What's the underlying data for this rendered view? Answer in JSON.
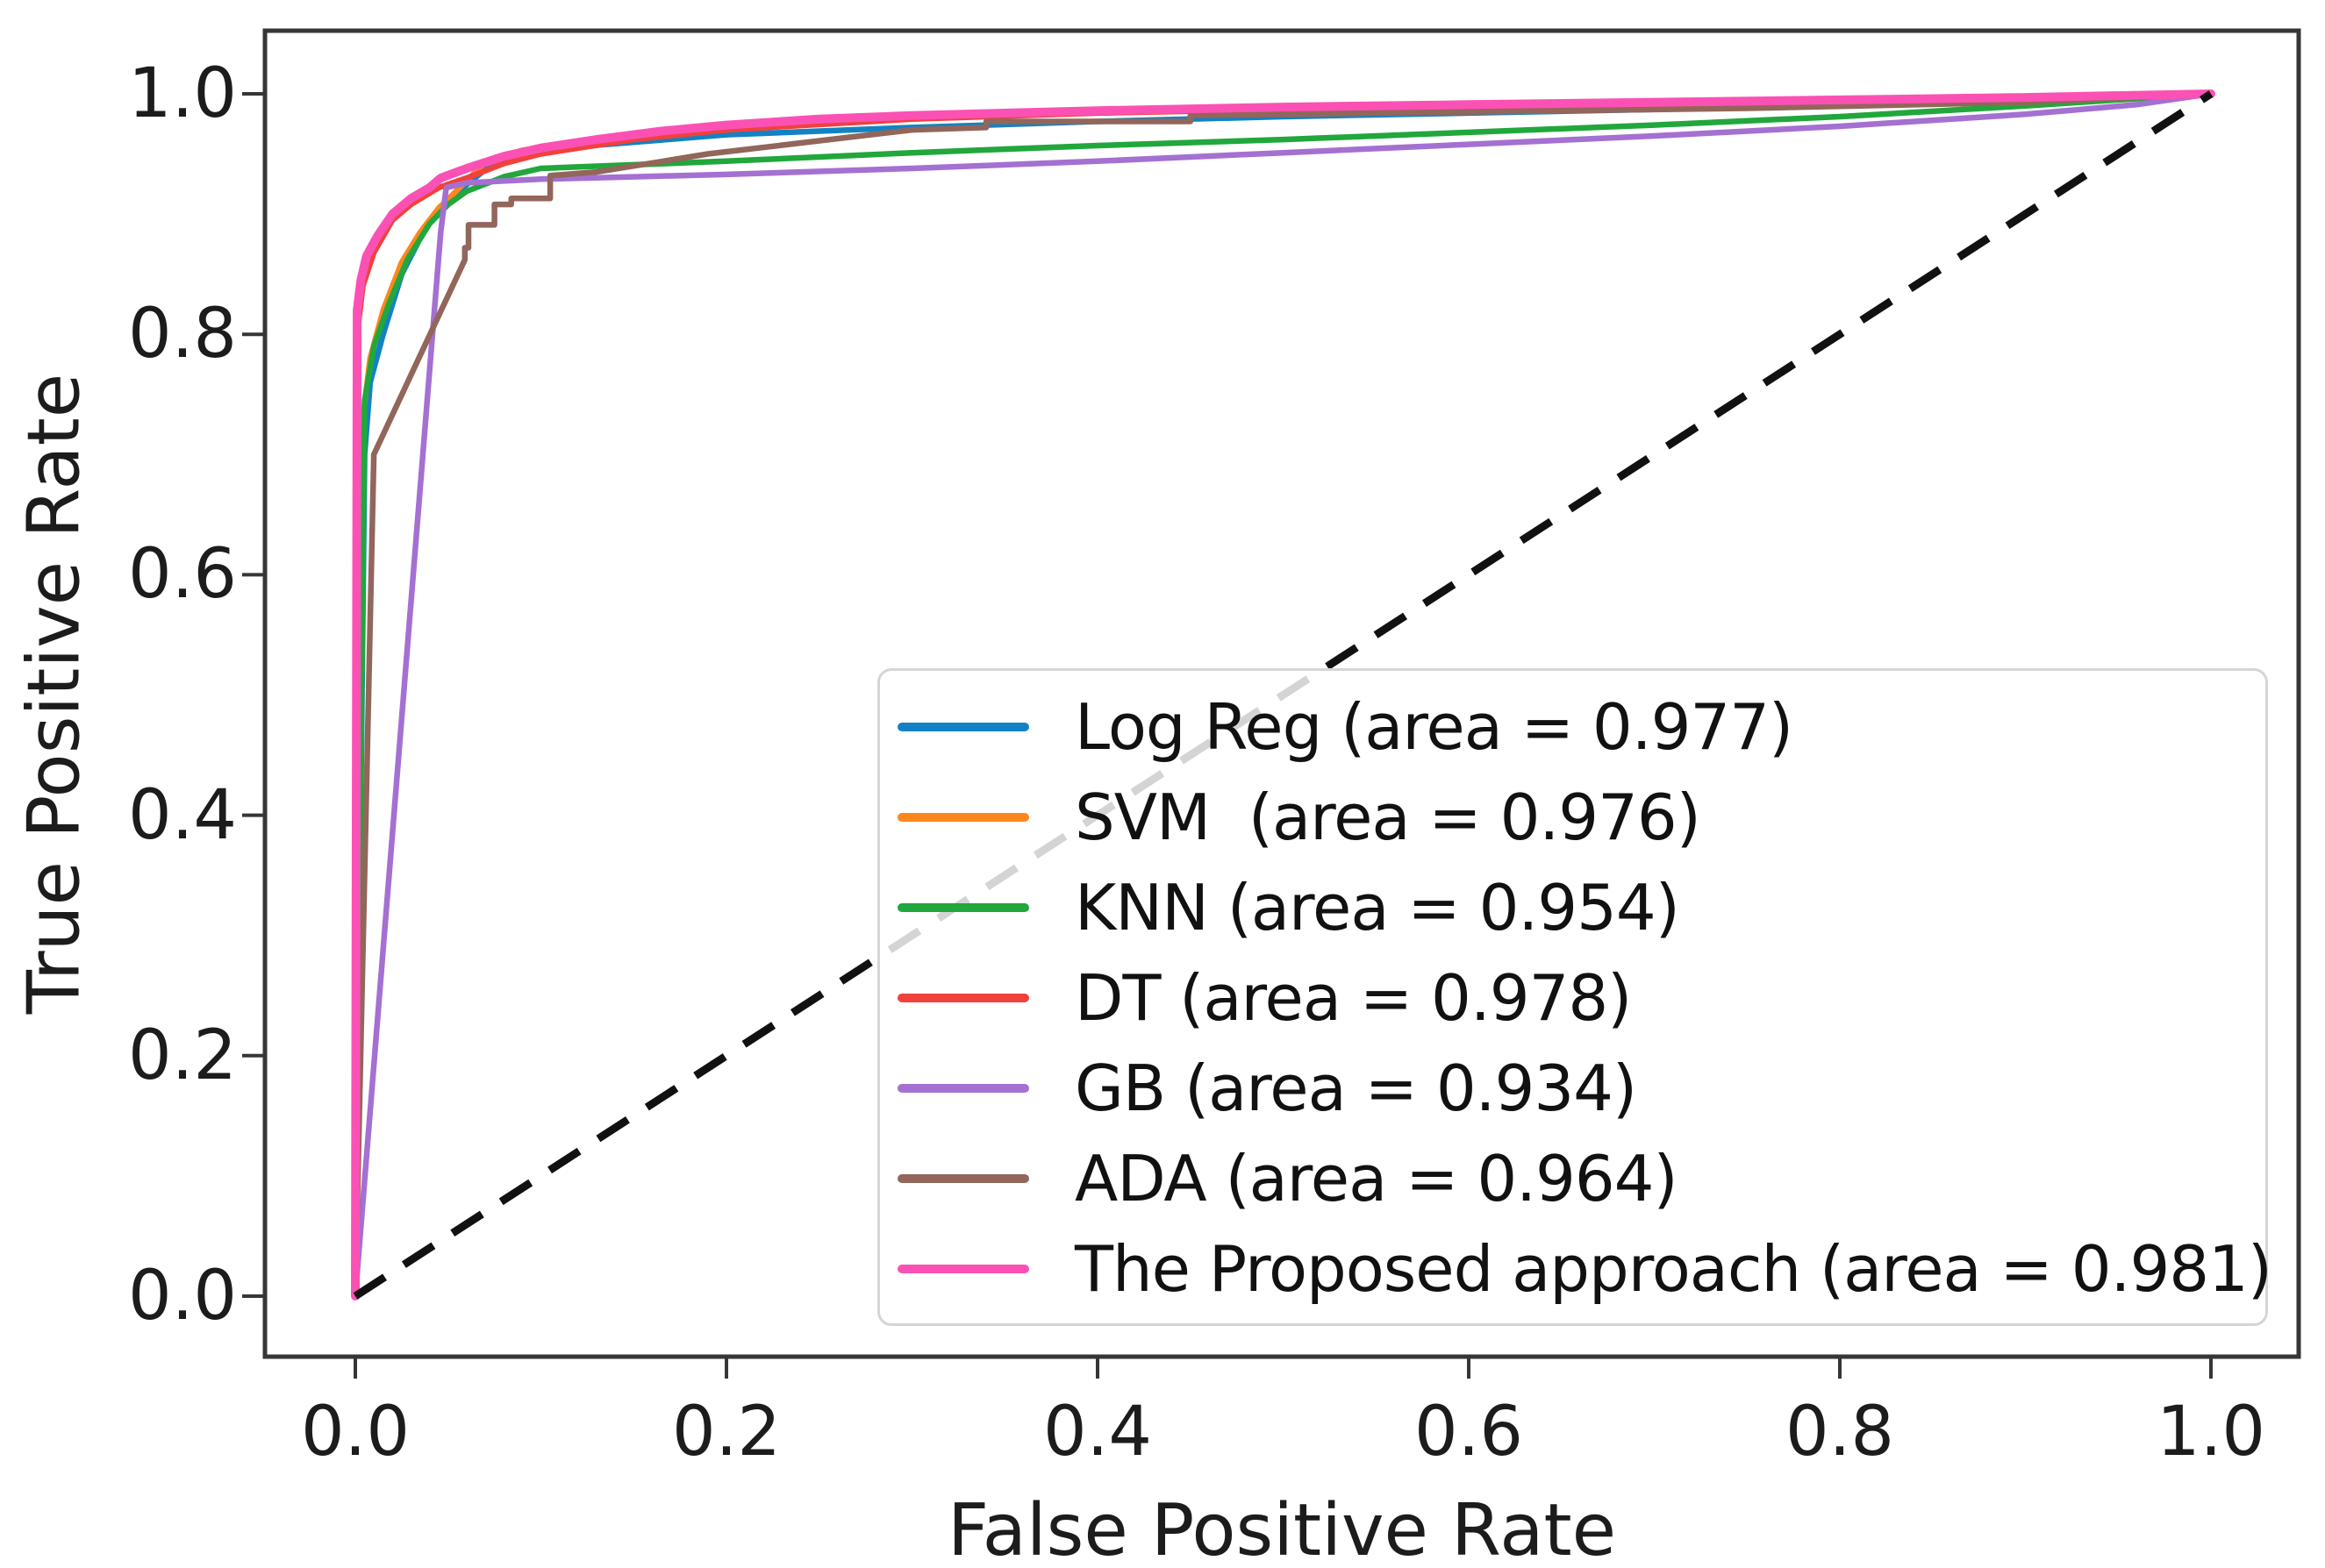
{
  "chart_data": {
    "type": "line",
    "title": "",
    "xlabel": "False Positive Rate",
    "ylabel": "True Positive Rate",
    "xlim": [
      -0.05,
      1.05
    ],
    "ylim": [
      -0.05,
      1.05
    ],
    "grid": false,
    "legend_position": "lower right",
    "x_tick_values": [
      0.0,
      0.2,
      0.4,
      0.6,
      0.8,
      1.0
    ],
    "y_tick_values": [
      0.0,
      0.2,
      0.4,
      0.6,
      0.8,
      1.0
    ],
    "x_tick_labels": [
      "0.0",
      "0.2",
      "0.4",
      "0.6",
      "0.8",
      "1.0"
    ],
    "y_tick_labels": [
      "0.0",
      "0.2",
      "0.4",
      "0.6",
      "0.8",
      "1.0"
    ],
    "diagonal_reference": {
      "style": "dashed",
      "color": "#111111",
      "points": [
        [
          0,
          0
        ],
        [
          1,
          1
        ]
      ]
    },
    "series": [
      {
        "key": "log-reg",
        "name": "Log Reg",
        "auc": 0.977,
        "label": "Log Reg (area = 0.977)",
        "color": "#1382c4",
        "points": [
          [
            0,
            0
          ],
          [
            0.005,
            0.7
          ],
          [
            0.008,
            0.76
          ],
          [
            0.015,
            0.8
          ],
          [
            0.025,
            0.85
          ],
          [
            0.035,
            0.88
          ],
          [
            0.045,
            0.905
          ],
          [
            0.055,
            0.918
          ],
          [
            0.07,
            0.937
          ],
          [
            0.09,
            0.95
          ],
          [
            0.12,
            0.956
          ],
          [
            0.16,
            0.961
          ],
          [
            0.2,
            0.966
          ],
          [
            0.3,
            0.972
          ],
          [
            0.4,
            0.977
          ],
          [
            0.5,
            0.981
          ],
          [
            0.6,
            0.984
          ],
          [
            0.7,
            0.987
          ],
          [
            0.8,
            0.991
          ],
          [
            0.9,
            0.995
          ],
          [
            1,
            1
          ]
        ]
      },
      {
        "key": "svm",
        "name": "SVM",
        "auc": 0.976,
        "label": "SVM  (area = 0.976)",
        "color": "#ff861c",
        "points": [
          [
            0,
            0
          ],
          [
            0.004,
            0.73
          ],
          [
            0.008,
            0.78
          ],
          [
            0.015,
            0.82
          ],
          [
            0.025,
            0.86
          ],
          [
            0.035,
            0.885
          ],
          [
            0.045,
            0.905
          ],
          [
            0.055,
            0.92
          ],
          [
            0.07,
            0.943
          ],
          [
            0.09,
            0.953
          ],
          [
            0.12,
            0.958
          ],
          [
            0.15,
            0.963
          ],
          [
            0.18,
            0.968
          ],
          [
            0.22,
            0.973
          ],
          [
            0.27,
            0.978
          ],
          [
            0.35,
            0.983
          ],
          [
            0.45,
            0.986
          ],
          [
            0.6,
            0.989
          ],
          [
            0.75,
            0.992
          ],
          [
            0.9,
            0.996
          ],
          [
            1,
            1
          ]
        ]
      },
      {
        "key": "knn",
        "name": "KNN",
        "auc": 0.954,
        "label": "KNN (area = 0.954)",
        "color": "#21a73c",
        "points": [
          [
            0,
            0
          ],
          [
            0.005,
            0.745
          ],
          [
            0.01,
            0.79
          ],
          [
            0.018,
            0.825
          ],
          [
            0.028,
            0.862
          ],
          [
            0.04,
            0.892
          ],
          [
            0.05,
            0.908
          ],
          [
            0.06,
            0.919
          ],
          [
            0.08,
            0.931
          ],
          [
            0.1,
            0.938
          ],
          [
            0.15,
            0.941
          ],
          [
            0.2,
            0.944
          ],
          [
            0.3,
            0.951
          ],
          [
            0.4,
            0.957
          ],
          [
            0.5,
            0.962
          ],
          [
            0.6,
            0.968
          ],
          [
            0.7,
            0.974
          ],
          [
            0.8,
            0.981
          ],
          [
            0.9,
            0.99
          ],
          [
            1,
            1
          ]
        ]
      },
      {
        "key": "dt",
        "name": "DT",
        "auc": 0.978,
        "label": "DT (area = 0.978)",
        "color": "#f0413c",
        "points": [
          [
            0,
            0
          ],
          [
            0.001,
            0.8
          ],
          [
            0.004,
            0.84
          ],
          [
            0.01,
            0.868
          ],
          [
            0.02,
            0.895
          ],
          [
            0.03,
            0.908
          ],
          [
            0.045,
            0.922
          ],
          [
            0.06,
            0.93
          ],
          [
            0.08,
            0.942
          ],
          [
            0.1,
            0.95
          ],
          [
            0.15,
            0.962
          ],
          [
            0.2,
            0.97
          ],
          [
            0.3,
            0.979
          ],
          [
            0.4,
            0.984
          ],
          [
            0.5,
            0.987
          ],
          [
            0.6,
            0.989
          ],
          [
            0.7,
            0.992
          ],
          [
            0.8,
            0.994
          ],
          [
            0.9,
            0.997
          ],
          [
            1,
            1
          ]
        ]
      },
      {
        "key": "gb",
        "name": "GB",
        "auc": 0.934,
        "label": "GB (area = 0.934)",
        "color": "#a470d2",
        "points": [
          [
            0,
            0
          ],
          [
            0.046,
            0.885
          ],
          [
            0.049,
            0.922
          ],
          [
            0.06,
            0.926
          ],
          [
            0.1,
            0.929
          ],
          [
            0.15,
            0.931
          ],
          [
            0.2,
            0.933
          ],
          [
            0.3,
            0.938
          ],
          [
            0.4,
            0.944
          ],
          [
            0.5,
            0.951
          ],
          [
            0.6,
            0.958
          ],
          [
            0.7,
            0.965
          ],
          [
            0.8,
            0.973
          ],
          [
            0.9,
            0.983
          ],
          [
            0.96,
            0.991
          ],
          [
            1,
            1
          ]
        ]
      },
      {
        "key": "ada",
        "name": "ADA",
        "auc": 0.964,
        "label": "ADA (area = 0.964)",
        "color": "#92665a",
        "points": [
          [
            0,
            0
          ],
          [
            0.01,
            0.7
          ],
          [
            0.059,
            0.862
          ],
          [
            0.059,
            0.872
          ],
          [
            0.061,
            0.872
          ],
          [
            0.061,
            0.891
          ],
          [
            0.075,
            0.891
          ],
          [
            0.075,
            0.908
          ],
          [
            0.084,
            0.908
          ],
          [
            0.084,
            0.913
          ],
          [
            0.105,
            0.913
          ],
          [
            0.105,
            0.932
          ],
          [
            0.13,
            0.935
          ],
          [
            0.166,
            0.944
          ],
          [
            0.19,
            0.95
          ],
          [
            0.3,
            0.97
          ],
          [
            0.34,
            0.972
          ],
          [
            0.34,
            0.977
          ],
          [
            0.45,
            0.977
          ],
          [
            0.45,
            0.982
          ],
          [
            0.6,
            0.985
          ],
          [
            0.75,
            0.988
          ],
          [
            0.9,
            0.993
          ],
          [
            1,
            1
          ]
        ]
      },
      {
        "key": "proposed",
        "name": "The Proposed approach",
        "auc": 0.981,
        "label": "The Proposed approach (area = 0.981)",
        "color": "#fb51b5",
        "points": [
          [
            0,
            0
          ],
          [
            0.001,
            0.82
          ],
          [
            0.003,
            0.845
          ],
          [
            0.006,
            0.865
          ],
          [
            0.012,
            0.882
          ],
          [
            0.02,
            0.9
          ],
          [
            0.03,
            0.913
          ],
          [
            0.04,
            0.922
          ],
          [
            0.046,
            0.93
          ],
          [
            0.06,
            0.938
          ],
          [
            0.08,
            0.948
          ],
          [
            0.1,
            0.955
          ],
          [
            0.13,
            0.962
          ],
          [
            0.165,
            0.969
          ],
          [
            0.2,
            0.974
          ],
          [
            0.25,
            0.979
          ],
          [
            0.3,
            0.982
          ],
          [
            0.4,
            0.986
          ],
          [
            0.5,
            0.989
          ],
          [
            0.6,
            0.991
          ],
          [
            0.7,
            0.993
          ],
          [
            0.8,
            0.995
          ],
          [
            0.9,
            0.997
          ],
          [
            1,
            1
          ]
        ]
      }
    ]
  }
}
